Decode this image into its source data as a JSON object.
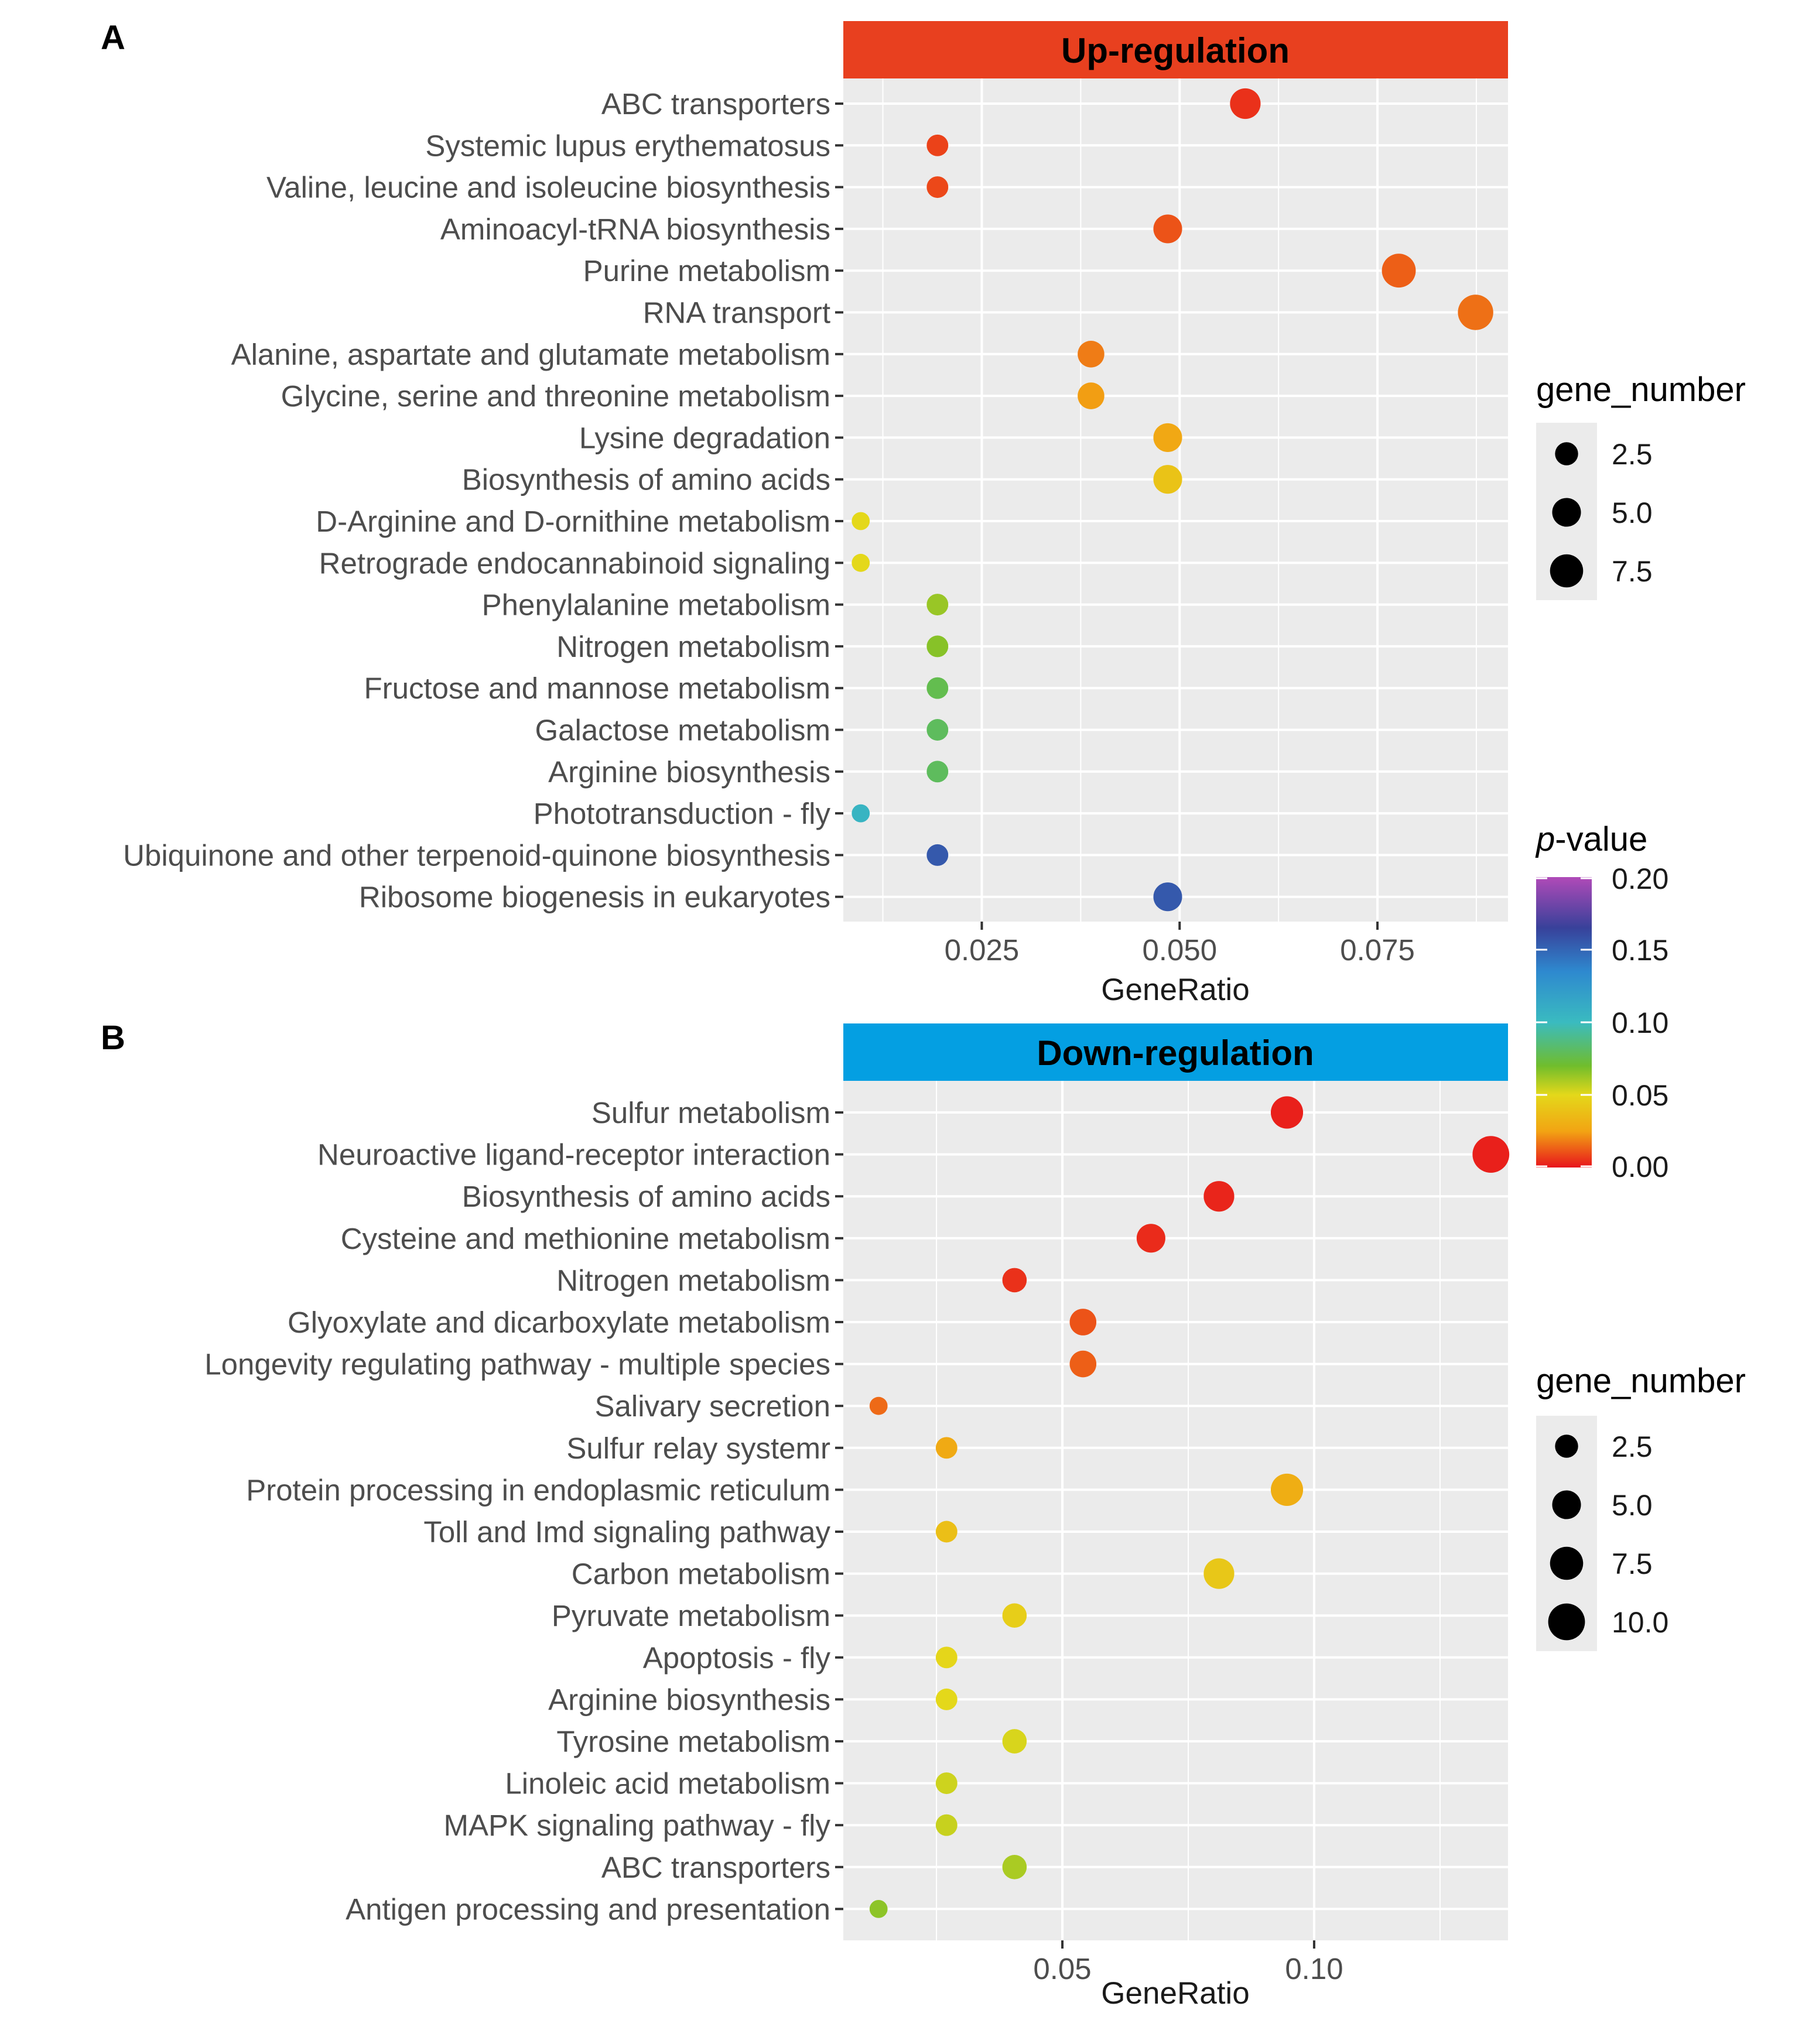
{
  "chart_data": [
    {
      "type": "scatter",
      "panel_label": "A",
      "title": "Up-regulation",
      "strip_color": "#e8401f",
      "xlabel": "GeneRatio",
      "ylabel": "",
      "xlim": [
        0.0075,
        0.0915
      ],
      "xticks": [
        0.025,
        0.05,
        0.075
      ],
      "xtick_labels": [
        "0.025",
        "0.050",
        "0.075"
      ],
      "grid": true,
      "points": [
        {
          "term": "ABC transporters",
          "gene_ratio": 0.0583,
          "gene_number": 6,
          "p_value": 0.005,
          "highlight": false
        },
        {
          "term": "Systemic lupus erythematosus",
          "gene_ratio": 0.0194,
          "gene_number": 2,
          "p_value": 0.008,
          "highlight": false
        },
        {
          "term": "Valine, leucine and isoleucine biosynthesis",
          "gene_ratio": 0.0194,
          "gene_number": 2,
          "p_value": 0.009,
          "highlight": false
        },
        {
          "term": "Aminoacyl-tRNA biosynthesis",
          "gene_ratio": 0.0485,
          "gene_number": 5,
          "p_value": 0.011,
          "highlight": true
        },
        {
          "term": "Purine metabolism",
          "gene_ratio": 0.0777,
          "gene_number": 8,
          "p_value": 0.013,
          "highlight": false
        },
        {
          "term": "RNA transport",
          "gene_ratio": 0.0874,
          "gene_number": 9,
          "p_value": 0.016,
          "highlight": true
        },
        {
          "term": "Alanine, aspartate and glutamate metabolism",
          "gene_ratio": 0.0388,
          "gene_number": 4,
          "p_value": 0.018,
          "highlight": false
        },
        {
          "term": "Glycine, serine and threonine metabolism",
          "gene_ratio": 0.0388,
          "gene_number": 4,
          "p_value": 0.024,
          "highlight": false
        },
        {
          "term": "Lysine degradation",
          "gene_ratio": 0.0485,
          "gene_number": 5,
          "p_value": 0.027,
          "highlight": false
        },
        {
          "term": "Biosynthesis of amino acids",
          "gene_ratio": 0.0485,
          "gene_number": 5,
          "p_value": 0.04,
          "highlight": false
        },
        {
          "term": "D-Arginine and D-ornithine metabolism",
          "gene_ratio": 0.0097,
          "gene_number": 1,
          "p_value": 0.05,
          "highlight": false
        },
        {
          "term": "Retrograde endocannabinoid signaling",
          "gene_ratio": 0.0097,
          "gene_number": 1,
          "p_value": 0.05,
          "highlight": false
        },
        {
          "term": "Phenylalanine metabolism",
          "gene_ratio": 0.0194,
          "gene_number": 2,
          "p_value": 0.063,
          "highlight": false
        },
        {
          "term": "Nitrogen metabolism",
          "gene_ratio": 0.0194,
          "gene_number": 2,
          "p_value": 0.066,
          "highlight": false
        },
        {
          "term": "Fructose and mannose metabolism",
          "gene_ratio": 0.0194,
          "gene_number": 2,
          "p_value": 0.077,
          "highlight": false
        },
        {
          "term": "Galactose metabolism",
          "gene_ratio": 0.0194,
          "gene_number": 2,
          "p_value": 0.08,
          "highlight": false
        },
        {
          "term": "Arginine biosynthesis",
          "gene_ratio": 0.0194,
          "gene_number": 2,
          "p_value": 0.08,
          "highlight": false
        },
        {
          "term": "Phototransduction - fly",
          "gene_ratio": 0.0097,
          "gene_number": 1,
          "p_value": 0.105,
          "highlight": false
        },
        {
          "term": "Ubiquinone and other terpenoid-quinone biosynthesis",
          "gene_ratio": 0.0194,
          "gene_number": 2,
          "p_value": 0.155,
          "highlight": false
        },
        {
          "term": "Ribosome biogenesis in eukaryotes",
          "gene_ratio": 0.0485,
          "gene_number": 5,
          "p_value": 0.155,
          "highlight": true
        }
      ]
    },
    {
      "type": "scatter",
      "panel_label": "B",
      "title": "Down-regulation",
      "strip_color": "#049fe2",
      "xlabel": "GeneRatio",
      "ylabel": "",
      "xlim": [
        0.0065,
        0.1385
      ],
      "xticks": [
        0.05,
        0.1
      ],
      "xtick_labels": [
        "0.05",
        "0.10"
      ],
      "grid": true,
      "points": [
        {
          "term": "Sulfur metabolism",
          "gene_ratio": 0.0946,
          "gene_number": 7,
          "p_value": 0.002,
          "highlight": false
        },
        {
          "term": "Neuroactive ligand-receptor interaction",
          "gene_ratio": 0.1351,
          "gene_number": 10,
          "p_value": 0.002,
          "highlight": true
        },
        {
          "term": "Biosynthesis of amino acids",
          "gene_ratio": 0.0811,
          "gene_number": 6,
          "p_value": 0.003,
          "highlight": false
        },
        {
          "term": "Cysteine and methionine metabolism",
          "gene_ratio": 0.0676,
          "gene_number": 5,
          "p_value": 0.004,
          "highlight": false
        },
        {
          "term": "Nitrogen metabolism",
          "gene_ratio": 0.0405,
          "gene_number": 3,
          "p_value": 0.005,
          "highlight": false
        },
        {
          "term": "Glyoxylate and dicarboxylate metabolism",
          "gene_ratio": 0.0541,
          "gene_number": 4,
          "p_value": 0.011,
          "highlight": false
        },
        {
          "term": "Longevity regulating pathway - multiple species",
          "gene_ratio": 0.0541,
          "gene_number": 4,
          "p_value": 0.013,
          "highlight": false
        },
        {
          "term": "Salivary secretion",
          "gene_ratio": 0.0135,
          "gene_number": 1,
          "p_value": 0.015,
          "highlight": false
        },
        {
          "term": "Sulfur relay systemr",
          "gene_ratio": 0.027,
          "gene_number": 2,
          "p_value": 0.028,
          "highlight": false
        },
        {
          "term": "Protein processing in endoplasmic reticulum",
          "gene_ratio": 0.0946,
          "gene_number": 7,
          "p_value": 0.03,
          "highlight": false
        },
        {
          "term": "Toll and Imd signaling pathway",
          "gene_ratio": 0.027,
          "gene_number": 2,
          "p_value": 0.038,
          "highlight": false
        },
        {
          "term": "Carbon metabolism",
          "gene_ratio": 0.0811,
          "gene_number": 6,
          "p_value": 0.042,
          "highlight": false
        },
        {
          "term": "Pyruvate metabolism",
          "gene_ratio": 0.0405,
          "gene_number": 3,
          "p_value": 0.045,
          "highlight": false
        },
        {
          "term": "Apoptosis - fly",
          "gene_ratio": 0.027,
          "gene_number": 2,
          "p_value": 0.049,
          "highlight": false
        },
        {
          "term": "Arginine biosynthesis",
          "gene_ratio": 0.027,
          "gene_number": 2,
          "p_value": 0.05,
          "highlight": false
        },
        {
          "term": "Tyrosine metabolism",
          "gene_ratio": 0.0405,
          "gene_number": 3,
          "p_value": 0.052,
          "highlight": false
        },
        {
          "term": "Linoleic acid metabolism",
          "gene_ratio": 0.027,
          "gene_number": 2,
          "p_value": 0.054,
          "highlight": false
        },
        {
          "term": "MAPK signaling pathway - fly",
          "gene_ratio": 0.027,
          "gene_number": 2,
          "p_value": 0.055,
          "highlight": false
        },
        {
          "term": "ABC transporters",
          "gene_ratio": 0.0405,
          "gene_number": 3,
          "p_value": 0.06,
          "highlight": false
        },
        {
          "term": "Antigen processing and presentation",
          "gene_ratio": 0.0135,
          "gene_number": 1,
          "p_value": 0.065,
          "highlight": false
        }
      ]
    }
  ],
  "legends": {
    "size_legends": [
      {
        "title": "gene_number",
        "labels": [
          "2.5",
          "5.0",
          "7.5"
        ],
        "values": [
          2.5,
          5.0,
          7.5
        ]
      },
      {
        "title": "gene_number",
        "labels": [
          "2.5",
          "5.0",
          "7.5",
          "10.0"
        ],
        "values": [
          2.5,
          5.0,
          7.5,
          10.0
        ]
      }
    ],
    "color_legend": {
      "title_italic": "p",
      "title_rest": "-value",
      "labels": [
        "0.20",
        "0.15",
        "0.10",
        "0.05",
        "0.00"
      ],
      "values": [
        0.2,
        0.15,
        0.1,
        0.05,
        0.0
      ],
      "limits": [
        0.0,
        0.2
      ]
    }
  },
  "colors": {
    "panel_bg": "#ebebeb",
    "grid": "#ffffff",
    "highlight_up": "#e8141e",
    "highlight_down": "#1473c0",
    "label_default": "#4d4d4d",
    "gradient": [
      {
        "v": 0.0,
        "c": "#e8141c"
      },
      {
        "v": 0.025,
        "c": "#f2a413"
      },
      {
        "v": 0.05,
        "c": "#e4d81a"
      },
      {
        "v": 0.07,
        "c": "#70bd2c"
      },
      {
        "v": 0.1,
        "c": "#3abbc0"
      },
      {
        "v": 0.135,
        "c": "#2e89cf"
      },
      {
        "v": 0.165,
        "c": "#38419a"
      },
      {
        "v": 0.2,
        "c": "#b04ab8"
      }
    ]
  }
}
